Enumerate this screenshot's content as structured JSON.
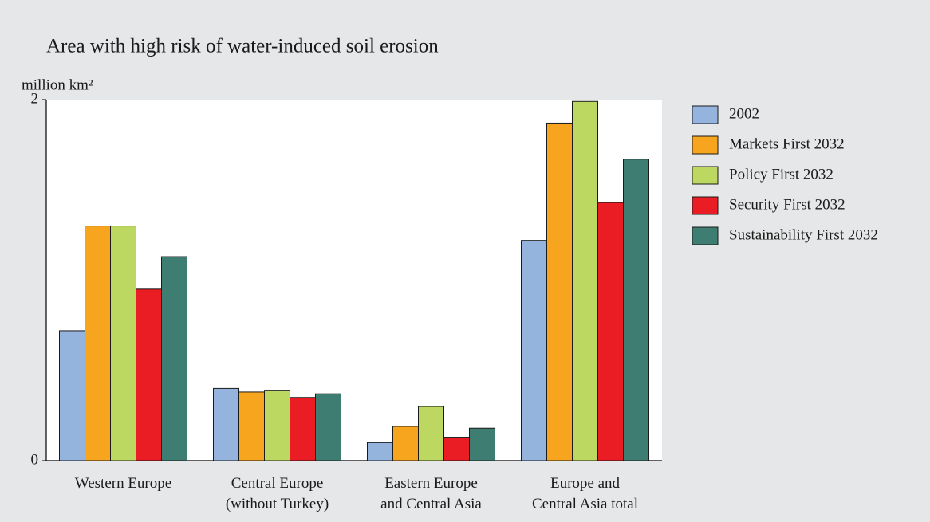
{
  "chart_data": {
    "type": "bar",
    "title": "Area with high risk of water-induced soil erosion",
    "y_label": "million km²",
    "categories": [
      "Western Europe",
      "Central Europe\n(without Turkey)",
      "Eastern Europe\nand Central Asia",
      "Europe and\nCentral Asia total"
    ],
    "series": [
      {
        "name": "2002",
        "color": "#94b3dd",
        "values": [
          0.72,
          0.4,
          0.1,
          1.22
        ]
      },
      {
        "name": "Markets First 2032",
        "color": "#f7a51e",
        "values": [
          1.3,
          0.38,
          0.19,
          1.87
        ]
      },
      {
        "name": "Policy First 2032",
        "color": "#bcd860",
        "values": [
          1.3,
          0.39,
          0.3,
          1.99
        ]
      },
      {
        "name": "Security First 2032",
        "color": "#ea1c24",
        "values": [
          0.95,
          0.35,
          0.13,
          1.43
        ]
      },
      {
        "name": "Sustainability First 2032",
        "color": "#3e7e72",
        "values": [
          1.13,
          0.37,
          0.18,
          1.67
        ]
      }
    ],
    "ylim": [
      0,
      2
    ],
    "yticks": [
      0,
      2
    ],
    "legend": "right"
  }
}
